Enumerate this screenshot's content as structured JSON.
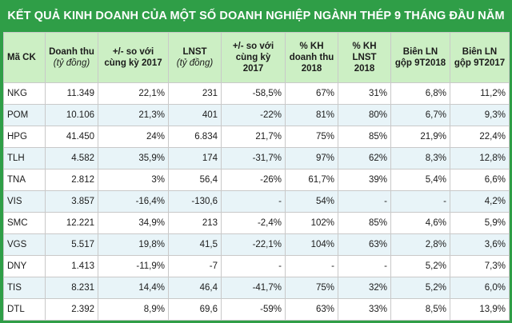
{
  "title": "KẾT QUẢ KINH DOANH CỦA MỘT SỐ DOANH NGHIỆP NGÀNH THÉP 9 THÁNG ĐẦU NĂM 2018",
  "columns": [
    {
      "l1": "Mã CK",
      "l2": ""
    },
    {
      "l1": "Doanh thu",
      "l2": "(tỷ đồng)"
    },
    {
      "l1": "+/- so với cùng kỳ 2017",
      "l2": ""
    },
    {
      "l1": "LNST",
      "l2": "(tỷ đồng)"
    },
    {
      "l1": "+/- so với cùng kỳ 2017",
      "l2": ""
    },
    {
      "l1": "% KH doanh thu 2018",
      "l2": ""
    },
    {
      "l1": "% KH LNST 2018",
      "l2": ""
    },
    {
      "l1": "Biên LN gộp 9T2018",
      "l2": ""
    },
    {
      "l1": "Biên LN gộp 9T2017",
      "l2": ""
    }
  ],
  "rows": [
    [
      "NKG",
      "11.349",
      "22,1%",
      "231",
      "-58,5%",
      "67%",
      "31%",
      "6,8%",
      "11,2%"
    ],
    [
      "POM",
      "10.106",
      "21,3%",
      "401",
      "-22%",
      "81%",
      "80%",
      "6,7%",
      "9,3%"
    ],
    [
      "HPG",
      "41.450",
      "24%",
      "6.834",
      "21,7%",
      "75%",
      "85%",
      "21,9%",
      "22,4%"
    ],
    [
      "TLH",
      "4.582",
      "35,9%",
      "174",
      "-31,7%",
      "97%",
      "62%",
      "8,3%",
      "12,8%"
    ],
    [
      "TNA",
      "2.812",
      "3%",
      "56,4",
      "-26%",
      "61,7%",
      "39%",
      "5,4%",
      "6,6%"
    ],
    [
      "VIS",
      "3.857",
      "-16,4%",
      "-130,6",
      "-",
      "54%",
      "-",
      "-",
      "4,2%"
    ],
    [
      "SMC",
      "12.221",
      "34,9%",
      "213",
      "-2,4%",
      "102%",
      "85%",
      "4,6%",
      "5,9%"
    ],
    [
      "VGS",
      "5.517",
      "19,8%",
      "41,5",
      "-22,1%",
      "104%",
      "63%",
      "2,8%",
      "3,6%"
    ],
    [
      "DNY",
      "1.413",
      "-11,9%",
      "-7",
      "-",
      "-",
      "-",
      "5,2%",
      "7,3%"
    ],
    [
      "TIS",
      "8.231",
      "14,4%",
      "46,4",
      "-41,7%",
      "75%",
      "32%",
      "5,2%",
      "6,0%"
    ],
    [
      "DTL",
      "2.392",
      "8,9%",
      "69,6",
      "-59%",
      "63%",
      "33%",
      "8,5%",
      "13,9%"
    ]
  ]
}
